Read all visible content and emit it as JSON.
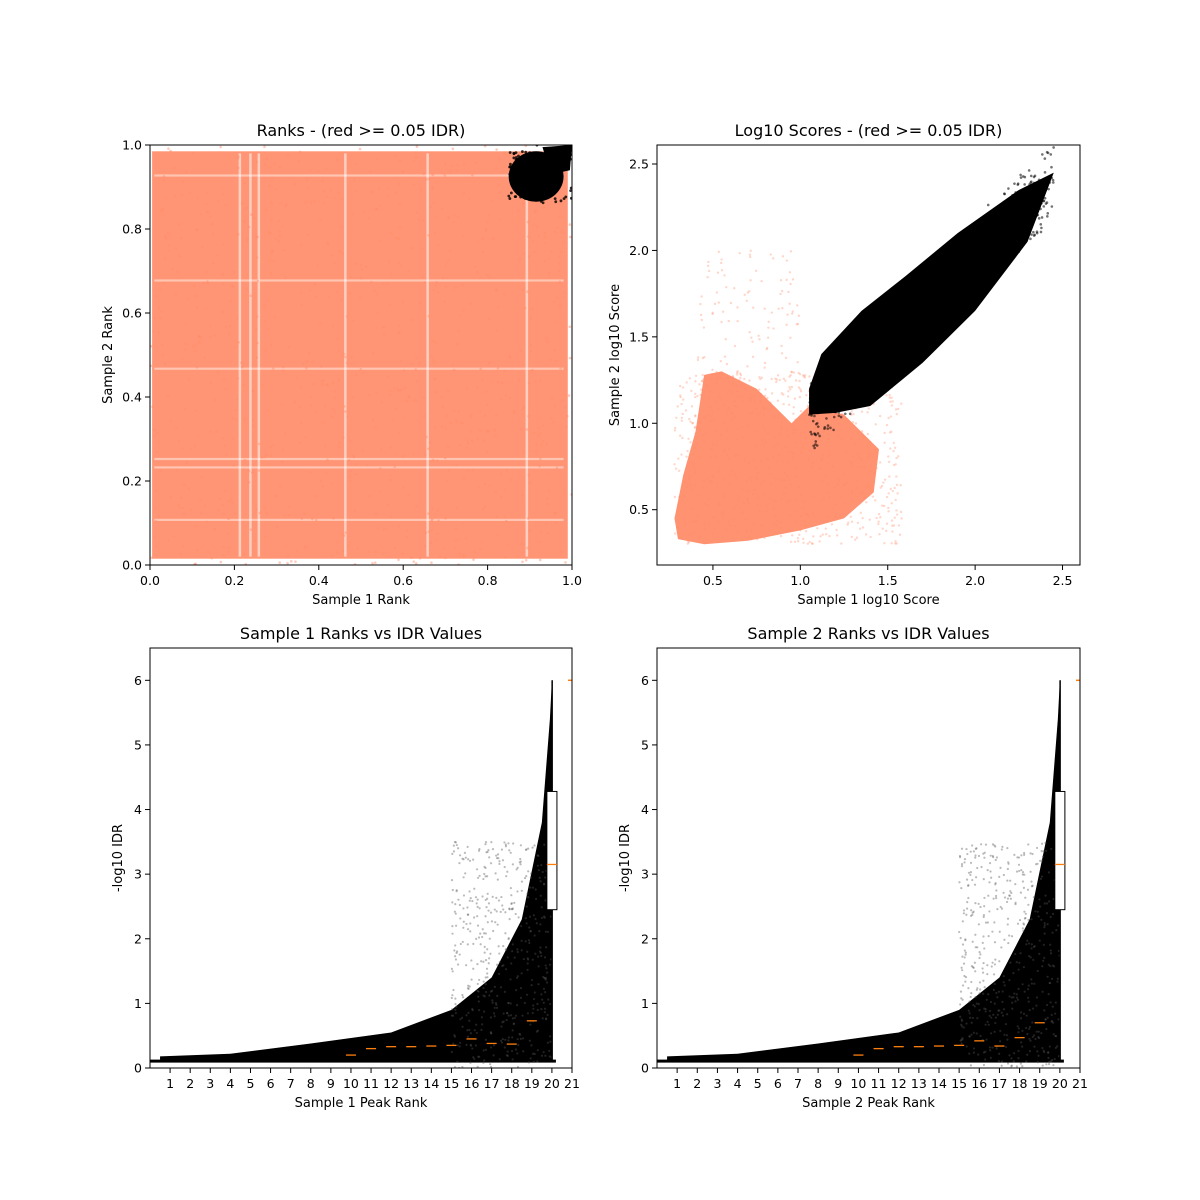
{
  "colors": {
    "below_threshold": "#ff8c69",
    "above_threshold": "#000000",
    "median_line": "#ff7f0e"
  },
  "chart_data": [
    {
      "type": "scatter",
      "title": "Ranks - (red >= 0.05 IDR)",
      "xlabel": "Sample 1 Rank",
      "ylabel": "Sample 2 Rank",
      "xlim": [
        0,
        1
      ],
      "ylim": [
        0,
        1
      ],
      "xticks": [
        "0.0",
        "0.2",
        "0.4",
        "0.6",
        "0.8",
        "1.0"
      ],
      "yticks": [
        "0.0",
        "0.2",
        "0.4",
        "0.6",
        "0.8",
        "1.0"
      ],
      "grid": false,
      "series": [
        {
          "color": "#ff8c69",
          "description_region": "dense field",
          "x_range": [
            0,
            1
          ],
          "y_range": [
            0,
            1
          ]
        },
        {
          "color": "#000000",
          "description_region": "upper-right cluster",
          "x_range": [
            0.85,
            1
          ],
          "y_range": [
            0.86,
            1
          ]
        }
      ]
    },
    {
      "type": "scatter",
      "title": "Log10 Scores - (red >= 0.05 IDR)",
      "xlabel": "Sample 1 log10 Score",
      "ylabel": "Sample 2 log10 Score",
      "xlim": [
        0.18,
        2.6
      ],
      "ylim": [
        0.18,
        2.61
      ],
      "xticks": [
        "0.5",
        "1.0",
        "1.5",
        "2.0",
        "2.5"
      ],
      "yticks": [
        "0.5",
        "1.0",
        "1.5",
        "2.0",
        "2.5"
      ],
      "grid": false,
      "series": [
        {
          "color": "#ff8c69",
          "x_range": [
            0.28,
            1.45
          ],
          "y_range": [
            0.3,
            1.3
          ]
        },
        {
          "color": "#000000",
          "x_range": [
            1.05,
            2.45
          ],
          "y_range": [
            1.05,
            2.53
          ]
        }
      ]
    },
    {
      "type": "scatter",
      "title": "Sample 1 Ranks vs IDR Values",
      "xlabel": "Sample 1 Peak Rank",
      "ylabel": "-log10 IDR",
      "xlim": [
        0,
        21
      ],
      "ylim": [
        0,
        6.5
      ],
      "xticks": [
        "1",
        "2",
        "3",
        "4",
        "5",
        "6",
        "7",
        "8",
        "9",
        "10",
        "11",
        "12",
        "13",
        "14",
        "15",
        "16",
        "17",
        "18",
        "19",
        "20",
        "21"
      ],
      "yticks": [
        "0",
        "1",
        "2",
        "3",
        "4",
        "5",
        "6"
      ],
      "curve": {
        "upper_x": [
          0.5,
          4,
          8,
          12,
          15,
          17,
          18.5,
          19.5,
          19.9,
          20
        ],
        "upper_y": [
          0.18,
          0.22,
          0.38,
          0.55,
          0.9,
          1.4,
          2.3,
          3.8,
          5.4,
          6.0
        ]
      },
      "medians": [
        {
          "x": 10,
          "y": 0.2
        },
        {
          "x": 11,
          "y": 0.3
        },
        {
          "x": 12,
          "y": 0.33
        },
        {
          "x": 13,
          "y": 0.33
        },
        {
          "x": 14,
          "y": 0.34
        },
        {
          "x": 15,
          "y": 0.35
        },
        {
          "x": 16,
          "y": 0.45
        },
        {
          "x": 17,
          "y": 0.38
        },
        {
          "x": 18,
          "y": 0.37
        },
        {
          "x": 19,
          "y": 0.73
        }
      ],
      "box": {
        "x": 20,
        "q1": 2.45,
        "median": 3.15,
        "q3": 4.28,
        "whisker_top": 6.0
      },
      "outlier": {
        "x": 21,
        "y": 6.0
      }
    },
    {
      "type": "scatter",
      "title": "Sample 2 Ranks vs IDR Values",
      "xlabel": "Sample 2 Peak Rank",
      "ylabel": "-log10 IDR",
      "xlim": [
        0,
        21
      ],
      "ylim": [
        0,
        6.5
      ],
      "xticks": [
        "1",
        "2",
        "3",
        "4",
        "5",
        "6",
        "7",
        "8",
        "9",
        "10",
        "11",
        "12",
        "13",
        "14",
        "15",
        "16",
        "17",
        "18",
        "19",
        "20",
        "21"
      ],
      "yticks": [
        "0",
        "1",
        "2",
        "3",
        "4",
        "5",
        "6"
      ],
      "curve": {
        "upper_x": [
          0.5,
          4,
          8,
          12,
          15,
          17,
          18.5,
          19.5,
          19.9,
          20
        ],
        "upper_y": [
          0.18,
          0.22,
          0.38,
          0.55,
          0.9,
          1.4,
          2.3,
          3.8,
          5.4,
          6.0
        ]
      },
      "medians": [
        {
          "x": 10,
          "y": 0.2
        },
        {
          "x": 11,
          "y": 0.3
        },
        {
          "x": 12,
          "y": 0.33
        },
        {
          "x": 13,
          "y": 0.33
        },
        {
          "x": 14,
          "y": 0.34
        },
        {
          "x": 15,
          "y": 0.35
        },
        {
          "x": 16,
          "y": 0.42
        },
        {
          "x": 17,
          "y": 0.34
        },
        {
          "x": 18,
          "y": 0.47
        },
        {
          "x": 19,
          "y": 0.7
        }
      ],
      "box": {
        "x": 20,
        "q1": 2.45,
        "median": 3.15,
        "q3": 4.28,
        "whisker_top": 6.0
      },
      "outlier": {
        "x": 21,
        "y": 6.0
      }
    }
  ]
}
